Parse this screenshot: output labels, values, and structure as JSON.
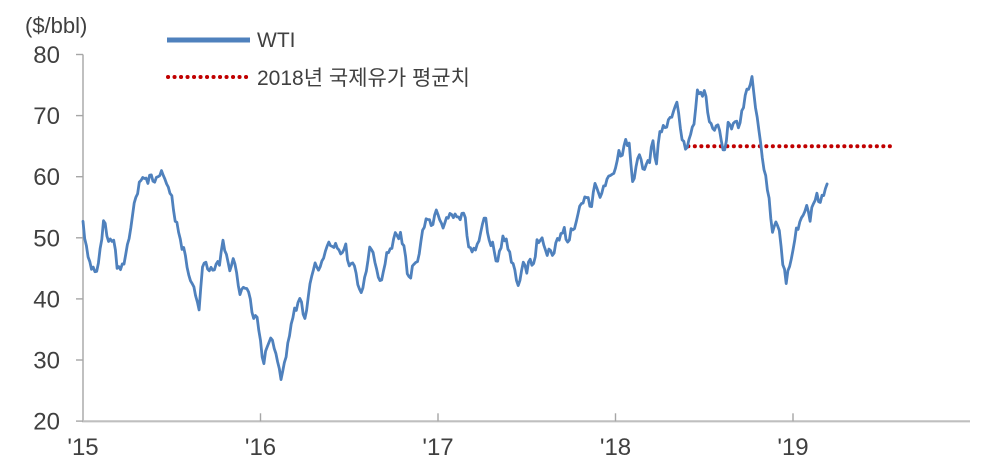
{
  "header": {
    "unit_label": "($/bbl)"
  },
  "legend": {
    "items": [
      {
        "label": "WTI",
        "color": "#4F81BD",
        "style": "solid"
      },
      {
        "label": "2018년 국제유가 평균치",
        "color": "#C00000",
        "style": "dotted"
      }
    ]
  },
  "axes": {
    "y_tick_labels": [
      "80",
      "70",
      "60",
      "50",
      "40",
      "30",
      "20"
    ],
    "x_tick_labels": [
      "'15",
      "'16",
      "'17",
      "'18",
      "'19"
    ]
  },
  "chart_data": {
    "type": "line",
    "title": "",
    "xlabel": "",
    "ylabel": "($/bbl)",
    "ylim": [
      20,
      80
    ],
    "y_ticks": [
      20,
      30,
      40,
      50,
      60,
      70,
      80
    ],
    "x_range_years": [
      2015,
      2020
    ],
    "x_tick_years": [
      2015,
      2016,
      2017,
      2018,
      2019
    ],
    "x_tick_labels": [
      "'15",
      "'16",
      "'17",
      "'18",
      "'19"
    ],
    "grid": false,
    "legend_position": "top-left-inside",
    "series": [
      {
        "name": "WTI",
        "type": "line",
        "color": "#4F81BD",
        "start_year": 2015,
        "points_per_year": 52,
        "values": [
          52.7,
          48.7,
          46.1,
          45.2,
          44.5,
          48.2,
          52.8,
          50.3,
          49.8,
          49.6,
          45.0,
          44.8,
          45.7,
          48.9,
          51.6,
          55.7,
          57.2,
          59.4,
          59.7,
          58.9,
          60.3,
          59.1,
          60.0,
          61.0,
          59.6,
          58.3,
          56.9,
          52.7,
          50.9,
          48.1,
          47.1,
          43.9,
          42.5,
          40.5,
          38.2,
          45.2,
          46.0,
          44.6,
          44.7,
          45.7,
          45.5,
          49.6,
          47.3,
          44.6,
          46.6,
          44.3,
          40.7,
          41.9,
          41.7,
          40.0,
          36.8,
          37.0,
          33.2,
          29.4,
          32.2,
          33.6,
          31.9,
          29.7,
          26.8,
          29.6,
          32.8,
          35.9,
          38.5,
          39.4,
          39.5,
          36.8,
          40.4,
          43.7,
          45.9,
          44.7,
          46.2,
          47.8,
          49.3,
          48.6,
          49.1,
          48.0,
          47.6,
          49.0,
          45.4,
          45.9,
          44.2,
          41.6,
          41.8,
          44.5,
          48.5,
          47.6,
          44.9,
          43.0,
          44.5,
          47.6,
          48.2,
          49.8,
          50.4,
          50.9,
          48.7,
          44.1,
          43.4,
          45.7,
          46.1,
          49.4,
          51.7,
          53.0,
          52.0,
          53.7,
          53.8,
          52.4,
          52.4,
          53.2,
          53.8,
          53.9,
          53.4,
          54.0,
          53.3,
          48.5,
          47.7,
          48.0,
          49.5,
          52.2,
          53.2,
          49.6,
          49.3,
          46.2,
          47.8,
          50.3,
          49.8,
          47.7,
          45.8,
          43.0,
          43.0,
          46.0,
          44.2,
          46.5,
          45.8,
          49.7,
          49.6,
          48.8,
          47.1,
          47.9,
          47.5,
          49.9,
          50.7,
          51.7,
          49.3,
          51.5,
          51.5,
          53.9,
          55.6,
          56.7,
          56.6,
          55.1,
          58.9,
          57.4,
          57.3,
          58.5,
          60.1,
          60.4,
          61.4,
          64.3,
          63.5,
          66.1,
          65.5,
          59.2,
          61.6,
          63.6,
          61.3,
          62.0,
          62.3,
          65.9,
          62.1,
          67.4,
          68.4,
          68.1,
          69.7,
          70.7,
          72.2,
          67.9,
          65.8,
          64.8,
          66.9,
          68.6,
          74.2,
          73.8,
          74.1,
          70.5,
          68.7,
          67.6,
          68.5,
          65.9,
          64.4,
          68.9,
          67.8,
          69.0,
          68.0,
          70.8,
          73.3,
          74.3,
          76.4,
          71.3,
          67.6,
          63.1,
          60.2,
          56.5,
          50.9,
          52.6,
          51.2,
          45.6,
          42.5,
          45.3,
          48.0,
          51.6,
          52.6,
          53.7,
          55.3,
          52.7,
          55.6,
          57.3,
          55.8,
          56.9,
          58.8
        ]
      },
      {
        "name": "2018년 국제유가 평균치",
        "type": "hline-dotted",
        "color": "#C00000",
        "value": 65,
        "x_start_year": 2018.41,
        "x_end_year": 2019.55
      }
    ]
  }
}
